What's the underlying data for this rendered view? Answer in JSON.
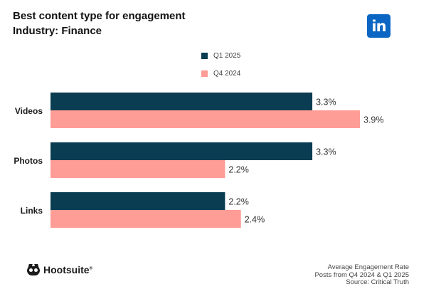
{
  "header": {
    "title": "Best content type for engagement",
    "subtitle": "Industry: Finance",
    "logo_text": "in"
  },
  "brand": {
    "name": "Hootsuite",
    "reg": "®"
  },
  "footer": {
    "line1": "Average Engagement Rate",
    "line2": "Posts from Q4 2024 & Q1 2025",
    "line3": "Source: Critical Truth"
  },
  "colors": {
    "q1": "#0b3d52",
    "q4": "#fe9c96",
    "linkedin": "#0a66c2"
  },
  "chart_data": {
    "type": "bar",
    "orientation": "horizontal",
    "title": "Best content type for engagement",
    "subtitle": "Industry: Finance",
    "categories": [
      "Videos",
      "Photos",
      "Links"
    ],
    "series": [
      {
        "name": "Q1 2025",
        "values": [
          3.3,
          3.3,
          2.2
        ],
        "labels": [
          "3.3%",
          "3.3%",
          "2.2%"
        ],
        "color": "#0b3d52"
      },
      {
        "name": "Q4 2024",
        "values": [
          3.9,
          2.2,
          2.4
        ],
        "labels": [
          "3.9%",
          "2.2%",
          "2.4%"
        ],
        "color": "#fe9c96"
      }
    ],
    "xlim": [
      0,
      3.9
    ],
    "legend": "top-center",
    "grid": false,
    "xlabel": "",
    "ylabel": ""
  }
}
